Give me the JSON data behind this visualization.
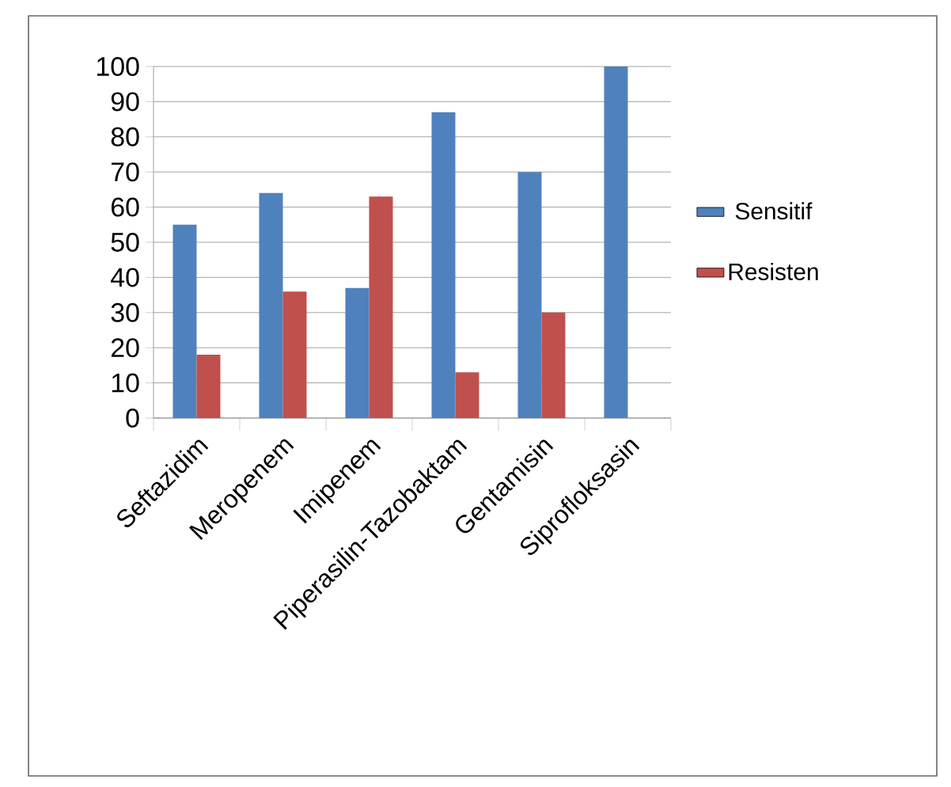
{
  "chart_data": {
    "type": "bar",
    "categories": [
      "Seftazidim",
      "Meropenem",
      "Imipenem",
      "Piperasilin-Tazobaktam",
      "Gentamisin",
      "Siprofloksasin"
    ],
    "series": [
      {
        "name": "Sensitif",
        "color": "#4f81bd",
        "values": [
          55,
          64,
          37,
          87,
          70,
          100
        ]
      },
      {
        "name": "Resisten",
        "color": "#c0504d",
        "values": [
          18,
          36,
          63,
          13,
          30,
          0
        ]
      }
    ],
    "ylim": [
      0,
      100
    ],
    "yticks": [
      0,
      10,
      20,
      30,
      40,
      50,
      60,
      70,
      80,
      90,
      100
    ],
    "grid": "y",
    "legend": "right"
  }
}
